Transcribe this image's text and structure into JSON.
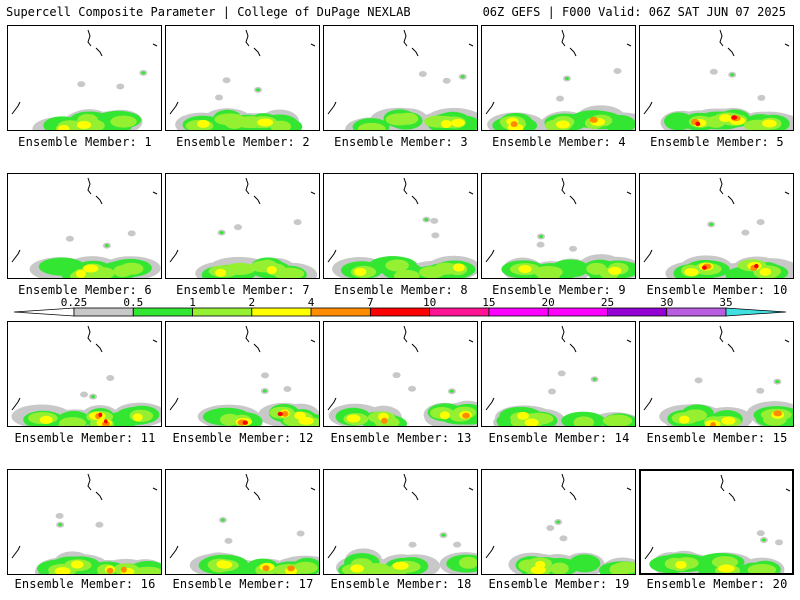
{
  "header": {
    "title": "Supercell Composite Parameter | College of DuPage NEXLAB",
    "run_info": "06Z GEFS | F000 Valid: 06Z SAT JUN 07 2025"
  },
  "legend": {
    "labels": [
      "0.25",
      "0.5",
      "1",
      "2",
      "4",
      "7",
      "10",
      "15",
      "20",
      "25",
      "30",
      "35"
    ],
    "colors": [
      "#ffffff",
      "#c8c8c8",
      "#32e632",
      "#96f032",
      "#ffff00",
      "#ff8c00",
      "#ff0000",
      "#ff1493",
      "#ff00ff",
      "#ff00ff",
      "#9400d3",
      "#b85ce0",
      "#40e0e0"
    ]
  },
  "map_colors": {
    "gray": "#c8c8c8",
    "green": "#32e632",
    "lime": "#96f032",
    "yellow": "#ffff00",
    "orange": "#ff8c00",
    "red": "#ff0000"
  },
  "members": [
    {
      "label": "Ensemble Member: 1",
      "intensity": 1
    },
    {
      "label": "Ensemble Member: 2",
      "intensity": 1
    },
    {
      "label": "Ensemble Member: 3",
      "intensity": 1
    },
    {
      "label": "Ensemble Member: 4",
      "intensity": 2
    },
    {
      "label": "Ensemble Member: 5",
      "intensity": 3
    },
    {
      "label": "Ensemble Member: 6",
      "intensity": 1
    },
    {
      "label": "Ensemble Member: 7",
      "intensity": 1
    },
    {
      "label": "Ensemble Member: 8",
      "intensity": 1
    },
    {
      "label": "Ensemble Member: 9",
      "intensity": 1
    },
    {
      "label": "Ensemble Member: 10",
      "intensity": 3
    },
    {
      "label": "Ensemble Member: 11",
      "intensity": 3
    },
    {
      "label": "Ensemble Member: 12",
      "intensity": 3
    },
    {
      "label": "Ensemble Member: 13",
      "intensity": 2
    },
    {
      "label": "Ensemble Member: 14",
      "intensity": 1
    },
    {
      "label": "Ensemble Member: 15",
      "intensity": 2
    },
    {
      "label": "Ensemble Member: 16",
      "intensity": 2
    },
    {
      "label": "Ensemble Member: 17",
      "intensity": 2
    },
    {
      "label": "Ensemble Member: 18",
      "intensity": 1
    },
    {
      "label": "Ensemble Member: 19",
      "intensity": 1
    },
    {
      "label": "Ensemble Member: 20",
      "intensity": 1
    }
  ],
  "selected_member": 20
}
